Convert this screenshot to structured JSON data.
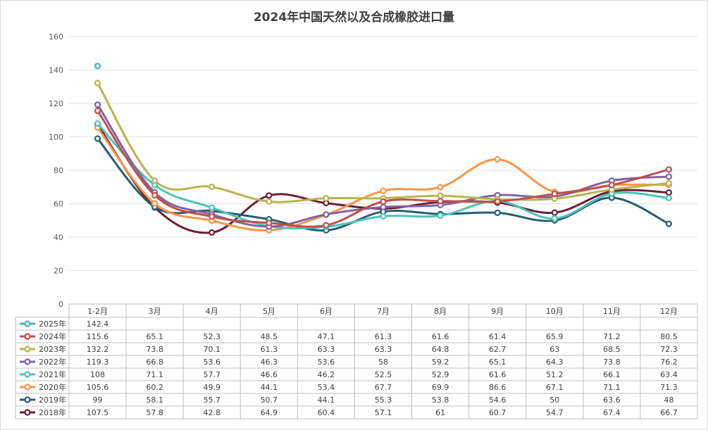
{
  "chart_data": {
    "type": "line",
    "title": "2024年中国天然以及合成橡胶进口量",
    "xlabel": "",
    "ylabel": "",
    "ylim": [
      0,
      160
    ],
    "yticks": [
      0,
      20,
      40,
      60,
      80,
      100,
      120,
      140,
      160
    ],
    "grid": true,
    "legend": "data-table-left",
    "categories": [
      "1-2月",
      "3月",
      "4月",
      "5月",
      "6月",
      "7月",
      "8月",
      "9月",
      "10月",
      "11月",
      "12月"
    ],
    "series": [
      {
        "name": "2025年",
        "color": "#4BACC6",
        "values": [
          142.4,
          null,
          null,
          null,
          null,
          null,
          null,
          null,
          null,
          null,
          null
        ]
      },
      {
        "name": "2024年",
        "color": "#C0504D",
        "values": [
          115.6,
          65.1,
          52.3,
          48.5,
          47.1,
          61.3,
          61.6,
          61.4,
          65.9,
          71.2,
          80.5
        ]
      },
      {
        "name": "2023年",
        "color": "#B5B552",
        "values": [
          132.2,
          73.8,
          70.1,
          61.3,
          63.3,
          63.3,
          64.8,
          62.7,
          63,
          68.5,
          72.3
        ]
      },
      {
        "name": "2022年",
        "color": "#8064A2",
        "values": [
          119.3,
          66.8,
          53.6,
          46.3,
          53.6,
          58,
          59.2,
          65.1,
          64.3,
          73.8,
          76.2
        ]
      },
      {
        "name": "2021年",
        "color": "#4DC4B8",
        "values": [
          108,
          71.1,
          57.7,
          46.6,
          46.2,
          52.5,
          52.9,
          61.6,
          51.2,
          66.1,
          63.4
        ]
      },
      {
        "name": "2020年",
        "color": "#F79646",
        "values": [
          105.6,
          60.2,
          49.9,
          44.1,
          53.4,
          67.7,
          69.9,
          86.6,
          67.1,
          71.1,
          71.3
        ]
      },
      {
        "name": "2019年",
        "color": "#255E73",
        "values": [
          99,
          58.1,
          55.7,
          50.7,
          44.1,
          55.3,
          53.8,
          54.6,
          50,
          63.6,
          48
        ]
      },
      {
        "name": "2018年",
        "color": "#6E1C3A",
        "values": [
          107.5,
          57.8,
          42.8,
          64.9,
          60.4,
          57.1,
          61,
          60.7,
          54.7,
          67.4,
          66.7
        ]
      }
    ]
  }
}
